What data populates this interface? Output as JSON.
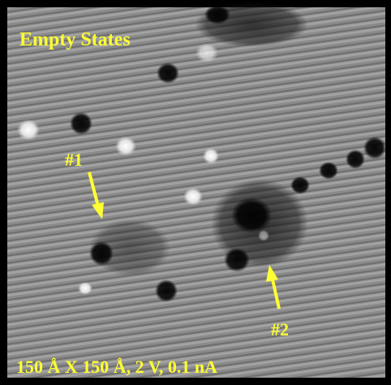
{
  "labels": {
    "title": "Empty States",
    "marker_1": "#1",
    "marker_2": "#2",
    "scan_info": "150 Å X 150 Å, 2 V, 0.1 nA"
  }
}
